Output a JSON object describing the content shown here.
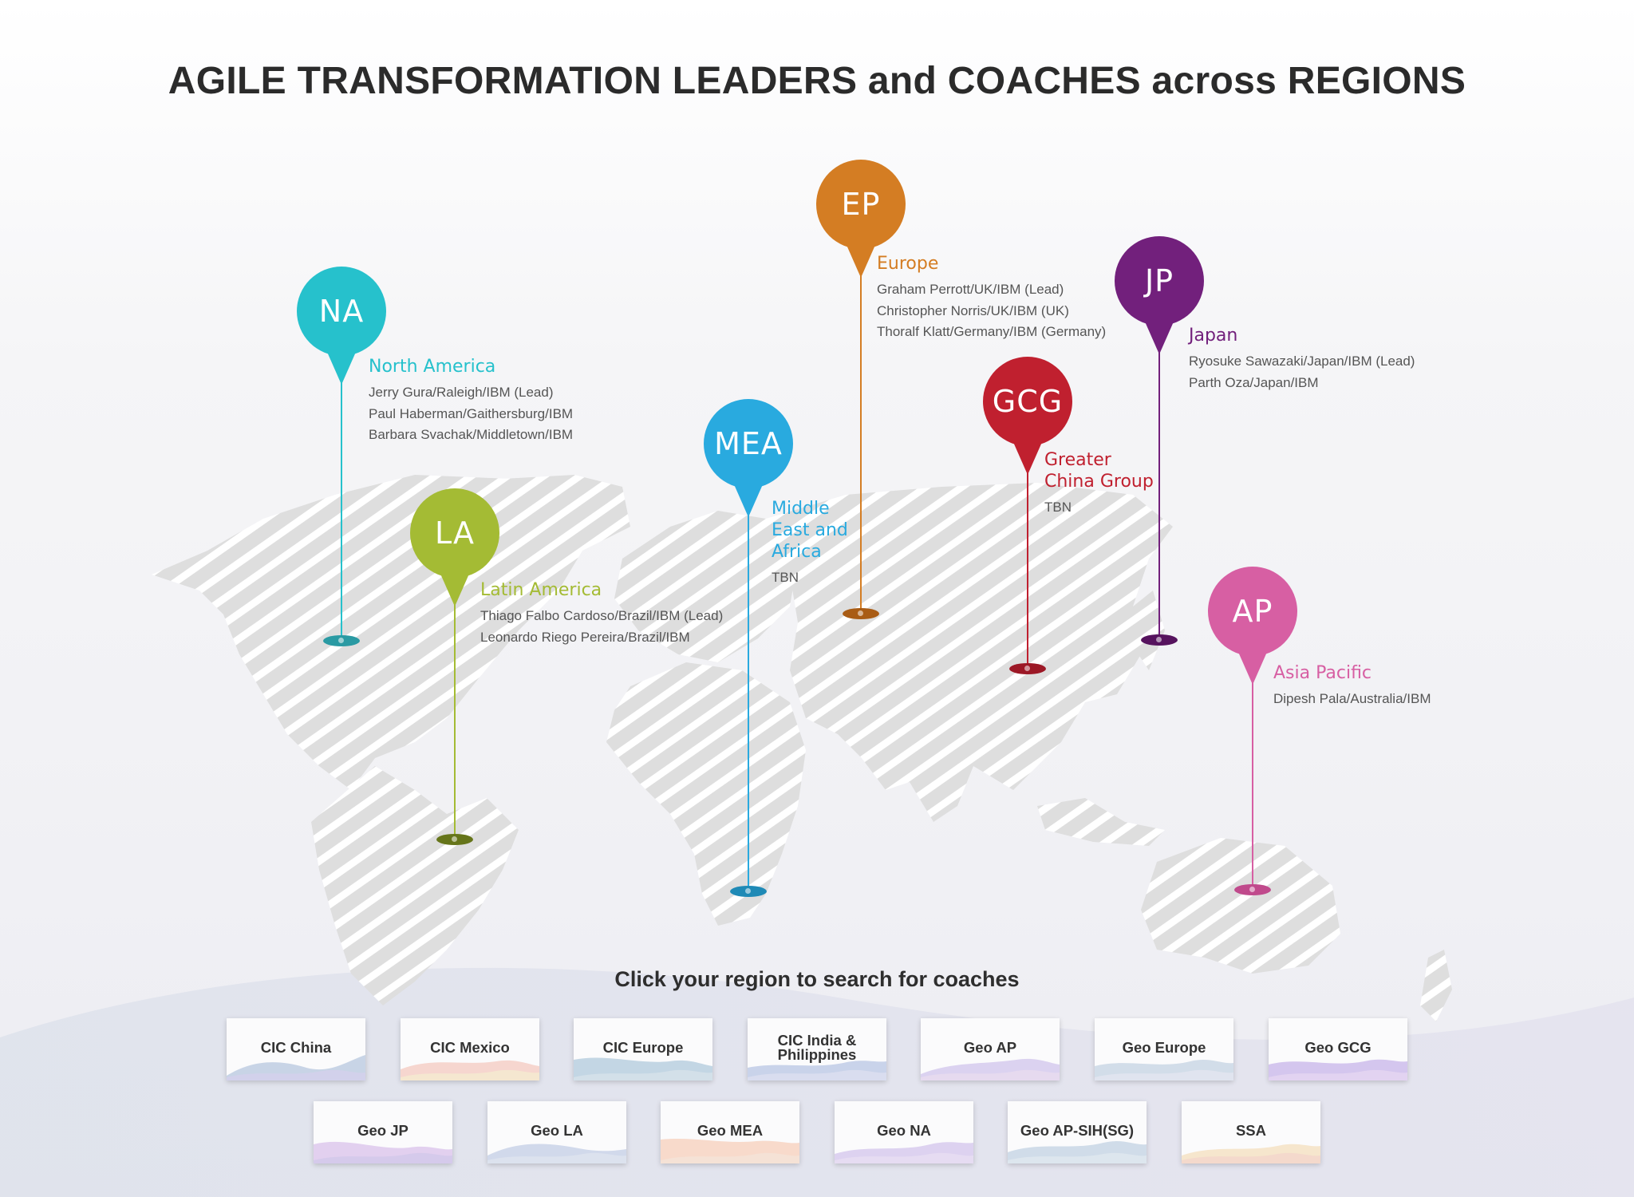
{
  "title": "AGILE TRANSFORMATION LEADERS and COACHES across REGIONS",
  "regions": {
    "na": {
      "code": "NA",
      "name_lines": [
        "North America"
      ],
      "color": "#26c1cc",
      "base_color": "#2a9aa3",
      "members": [
        "Jerry Gura/Raleigh/IBM (Lead)",
        "Paul Haberman/Gaithersburg/IBM",
        "Barbara Svachak/Middletown/IBM"
      ]
    },
    "la": {
      "code": "LA",
      "name_lines": [
        "Latin America"
      ],
      "color": "#a4bb34",
      "base_color": "#66751a",
      "members": [
        "Thiago Falbo Cardoso/Brazil/IBM (Lead)",
        "Leonardo Riego Pereira/Brazil/IBM"
      ]
    },
    "mea": {
      "code": "MEA",
      "name_lines": [
        "Middle",
        "East and",
        "Africa"
      ],
      "color": "#29aadf",
      "base_color": "#1f8ab6",
      "members": [
        "TBN"
      ]
    },
    "ep": {
      "code": "EP",
      "name_lines": [
        "Europe"
      ],
      "color": "#d47d23",
      "base_color": "#a95c15",
      "members": [
        "Graham Perrott/UK/IBM (Lead)",
        "Christopher Norris/UK/IBM (UK)",
        "Thoralf Klatt/Germany/IBM (Germany)"
      ]
    },
    "gcg": {
      "code": "GCG",
      "name_lines": [
        "Greater",
        "China Group"
      ],
      "color": "#c0202f",
      "base_color": "#9c1826",
      "members": [
        "TBN"
      ]
    },
    "jp": {
      "code": "JP",
      "name_lines": [
        "Japan"
      ],
      "color": "#72207c",
      "base_color": "#56135e",
      "members": [
        "Ryosuke Sawazaki/Japan/IBM (Lead)",
        "Parth Oza/Japan/IBM"
      ]
    },
    "ap": {
      "code": "AP",
      "name_lines": [
        "Asia Pacific"
      ],
      "color": "#d75fa3",
      "base_color": "#c04a8c",
      "members": [
        "Dipesh Pala/Australia/IBM"
      ]
    }
  },
  "cta": "Click your region to search for coaches",
  "buttons_row1": [
    {
      "lines": [
        "CIC China"
      ]
    },
    {
      "lines": [
        "CIC Mexico"
      ]
    },
    {
      "lines": [
        "CIC Europe"
      ]
    },
    {
      "lines": [
        "CIC India &",
        "Philippines"
      ]
    },
    {
      "lines": [
        "Geo AP"
      ]
    },
    {
      "lines": [
        "Geo Europe"
      ]
    },
    {
      "lines": [
        "Geo GCG"
      ]
    }
  ],
  "buttons_row2": [
    {
      "lines": [
        "Geo JP"
      ]
    },
    {
      "lines": [
        "Geo LA"
      ]
    },
    {
      "lines": [
        "Geo MEA"
      ]
    },
    {
      "lines": [
        "Geo NA"
      ]
    },
    {
      "lines": [
        "Geo AP-SIH(SG)"
      ]
    },
    {
      "lines": [
        "SSA"
      ]
    }
  ]
}
